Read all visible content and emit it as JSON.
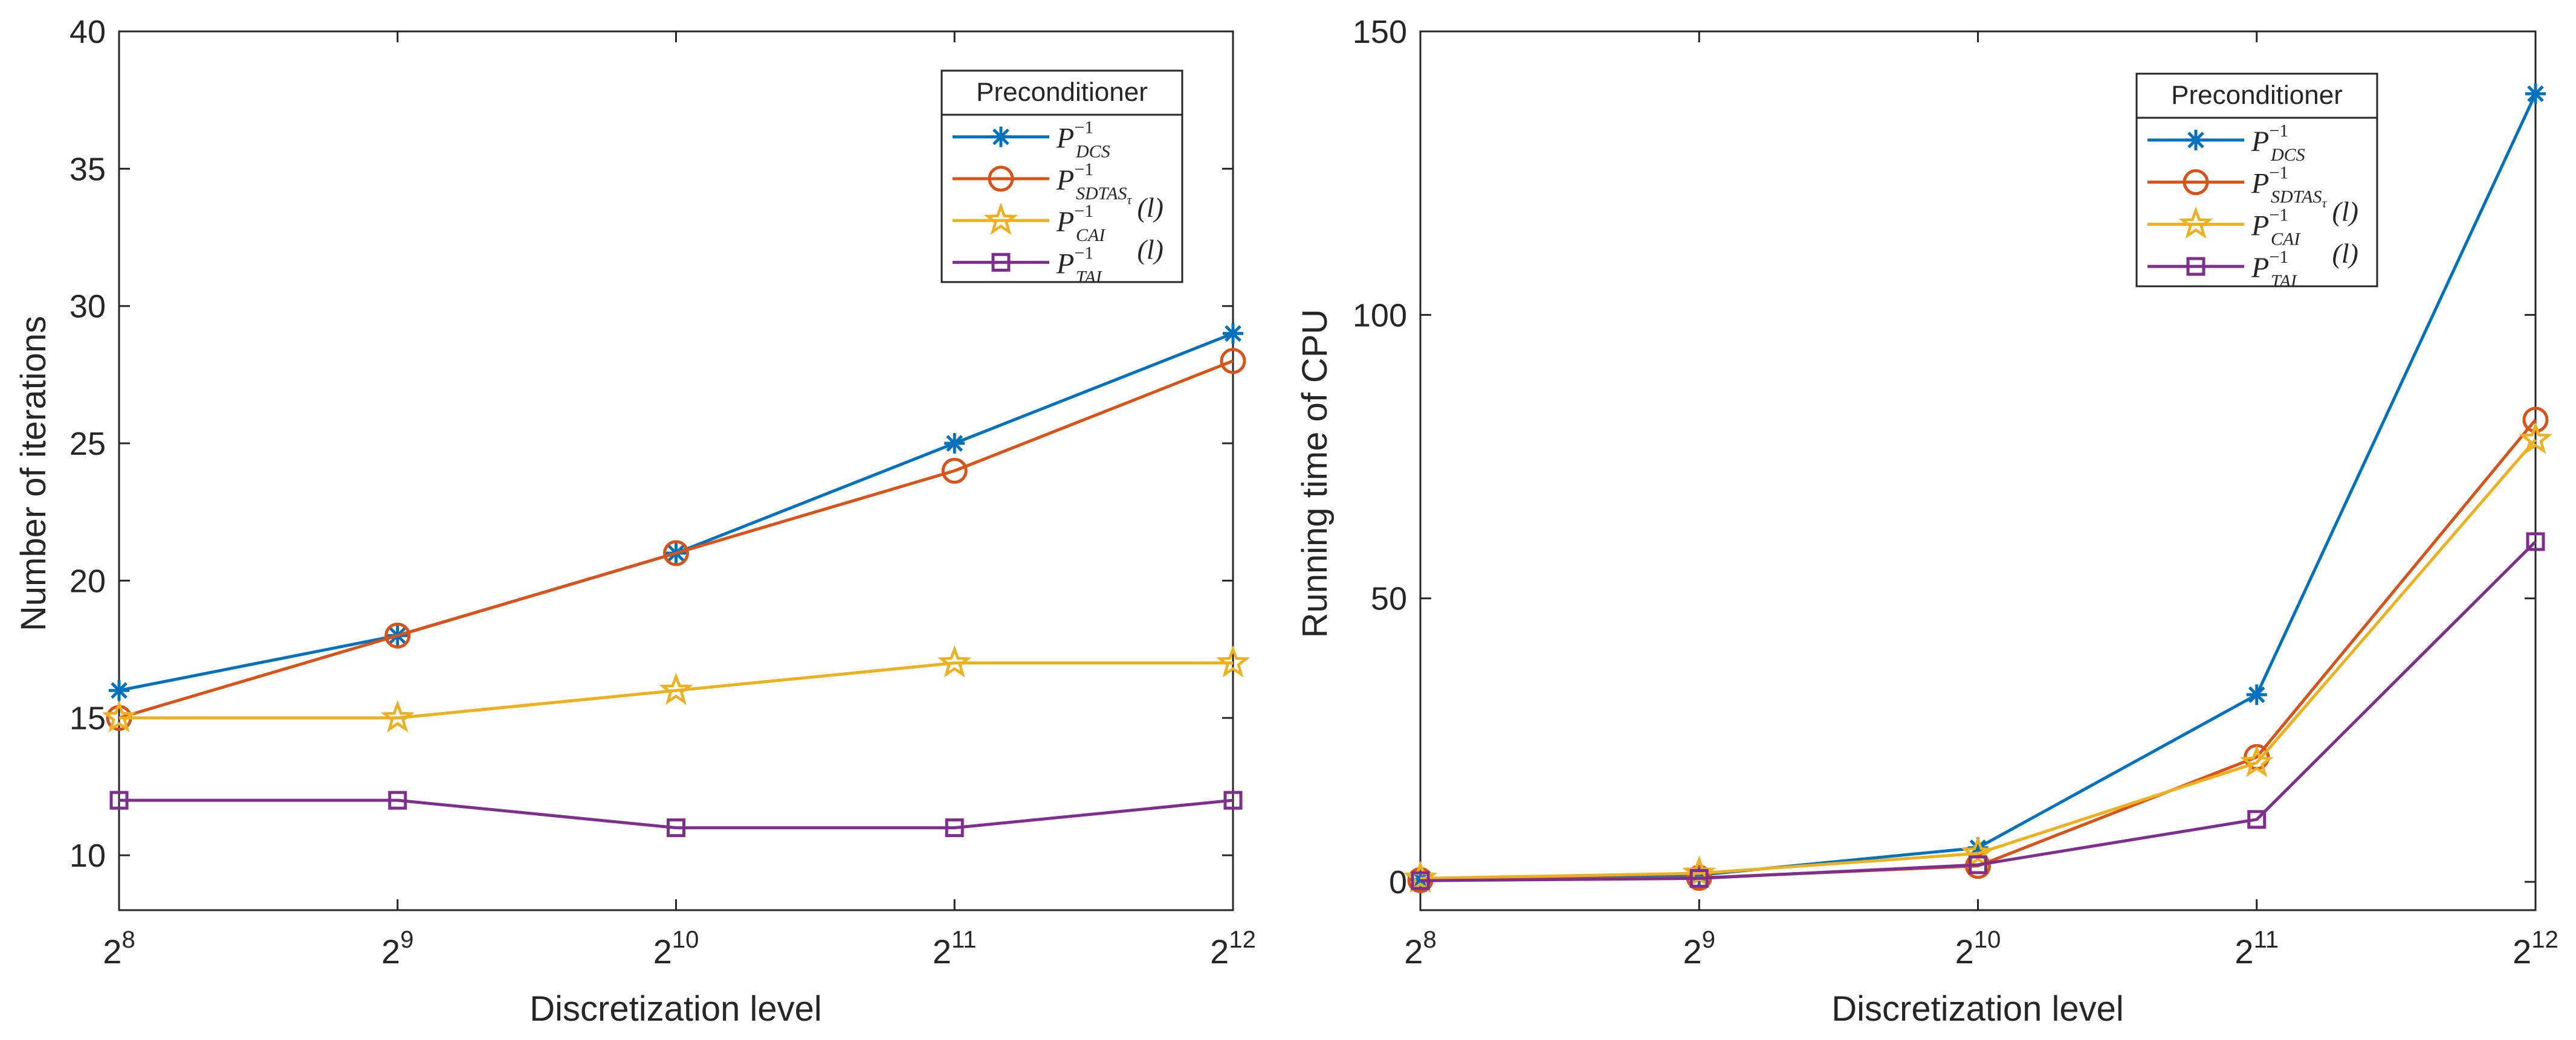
{
  "figure": {
    "background": "#ffffff"
  },
  "chart_data": [
    {
      "type": "line",
      "xlabel": "Discretization level",
      "ylabel": "Number of iterations",
      "x": [
        256,
        512,
        1024,
        2048,
        4096
      ],
      "x_tick_base": "2",
      "x_tick_exponents": [
        "8",
        "9",
        "10",
        "11",
        "12"
      ],
      "xscale": "log2",
      "ylim": [
        8,
        40
      ],
      "yticks": [
        10,
        15,
        20,
        25,
        30,
        35,
        40
      ],
      "ytick_labels": [
        "10",
        "15",
        "20",
        "25",
        "30",
        "35",
        "40"
      ],
      "grid": false,
      "legend": {
        "title": "Preconditioner",
        "position": "top-right"
      },
      "series": [
        {
          "name": "P_{DCS}^{-1}",
          "color": "#0072BD",
          "marker": "asterisk",
          "values": [
            16,
            18,
            21,
            25,
            29
          ]
        },
        {
          "name": "P_{SDTAS_τ}^{-1}",
          "color": "#D95319",
          "marker": "circle",
          "values": [
            15,
            18,
            21,
            24,
            28
          ]
        },
        {
          "name": "P_{CAI}^{-1} (l)",
          "color": "#EDB120",
          "marker": "star",
          "values": [
            15,
            15,
            16,
            17,
            17
          ]
        },
        {
          "name": "P_{TAI}^{-1} (l)",
          "color": "#7E2F8E",
          "marker": "square",
          "values": [
            12,
            12,
            11,
            11,
            12
          ]
        }
      ]
    },
    {
      "type": "line",
      "xlabel": "Discretization level",
      "ylabel": "Running time of CPU",
      "x": [
        256,
        512,
        1024,
        2048,
        4096
      ],
      "x_tick_base": "2",
      "x_tick_exponents": [
        "8",
        "9",
        "10",
        "11",
        "12"
      ],
      "xscale": "log2",
      "ylim": [
        -5,
        150
      ],
      "yticks": [
        0,
        50,
        100,
        150
      ],
      "ytick_labels": [
        "0",
        "50",
        "100",
        "150"
      ],
      "grid": false,
      "legend": {
        "title": "Preconditioner",
        "position": "top-right"
      },
      "series": [
        {
          "name": "P_{DCS}^{-1}",
          "color": "#0072BD",
          "marker": "asterisk",
          "values": [
            0.4,
            1.2,
            6.0,
            33.0,
            139.0
          ]
        },
        {
          "name": "P_{SDTAS_τ}^{-1}",
          "color": "#D95319",
          "marker": "circle",
          "values": [
            0.3,
            0.7,
            2.8,
            22.0,
            81.5
          ]
        },
        {
          "name": "P_{CAI}^{-1} (l)",
          "color": "#EDB120",
          "marker": "star",
          "values": [
            0.6,
            1.5,
            5.0,
            21.0,
            78.0
          ]
        },
        {
          "name": "P_{TAI}^{-1} (l)",
          "color": "#7E2F8E",
          "marker": "square",
          "values": [
            0.2,
            0.6,
            3.0,
            11.0,
            60.0
          ]
        }
      ]
    }
  ],
  "legend_text": {
    "sup": "−1",
    "entries": [
      {
        "main": "P",
        "sub": "DCS",
        "sub2": "",
        "suffix": ""
      },
      {
        "main": "P",
        "sub": "SDTAS",
        "sub2": "τ",
        "suffix": ""
      },
      {
        "main": "P",
        "sub": "CAI",
        "sub2": "",
        "suffix": " (l)"
      },
      {
        "main": "P",
        "sub": "TAI",
        "sub2": "",
        "suffix": " (l)"
      }
    ]
  }
}
